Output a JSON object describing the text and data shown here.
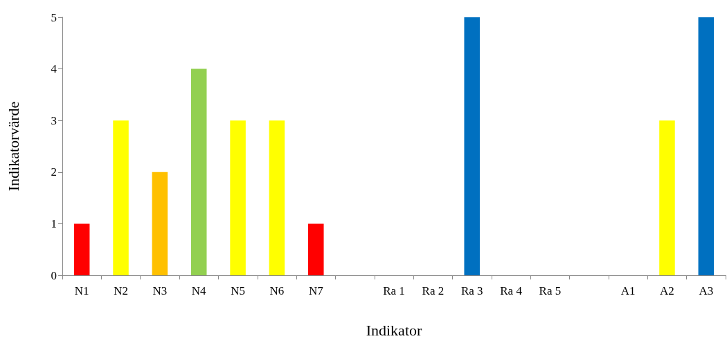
{
  "chart_data": {
    "type": "bar",
    "xlabel": "Indikator",
    "ylabel": "Indikatorvärde",
    "categories": [
      "N1",
      "N2",
      "N3",
      "N4",
      "N5",
      "N6",
      "N7",
      null,
      "Ra 1",
      "Ra 2",
      "Ra 3",
      "Ra 4",
      "Ra 5",
      null,
      "A1",
      "A2",
      "A3"
    ],
    "values": [
      1,
      3,
      2,
      4,
      3,
      3,
      1,
      null,
      0,
      0,
      5,
      0,
      0,
      null,
      0,
      3,
      5
    ],
    "colors": [
      "#ff0000",
      "#ffff00",
      "#ffc000",
      "#92d050",
      "#ffff00",
      "#ffff00",
      "#ff0000",
      "#ffffff",
      "#ffffff",
      "#ffffff",
      "#0070c0",
      "#ffffff",
      "#ffffff",
      "#ffffff",
      "#ffffff",
      "#ffff00",
      "#0070c0"
    ],
    "ylim": [
      0,
      5
    ],
    "yticks": [
      0,
      1,
      2,
      3,
      4,
      5
    ],
    "grid": false
  }
}
